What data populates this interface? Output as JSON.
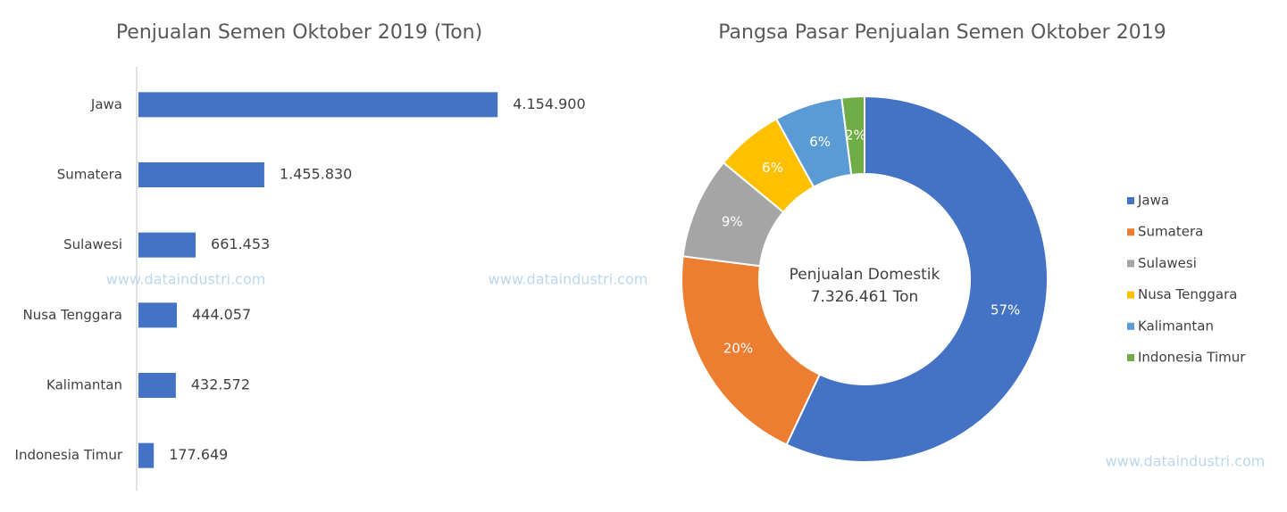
{
  "chart_data": [
    {
      "type": "hbar",
      "title": "Penjualan Semen Oktober 2019 (Ton)",
      "categories": [
        "Jawa",
        "Sumatera",
        "Sulawesi",
        "Nusa Tenggara",
        "Kalimantan",
        "Indonesia Timur"
      ],
      "values": [
        4154900,
        1455830,
        661453,
        444057,
        432572,
        177649
      ],
      "value_labels": [
        "4.154.900",
        "1.455.830",
        "661.453",
        "444.057",
        "432.572",
        "177.649"
      ],
      "color": "#4472c4",
      "xlim": [
        0,
        5000000
      ]
    },
    {
      "type": "donut",
      "title": "Pangsa Pasar Penjualan Semen Oktober 2019",
      "categories": [
        "Jawa",
        "Sumatera",
        "Sulawesi",
        "Nusa Tenggara",
        "Kalimantan",
        "Indonesia Timur"
      ],
      "values": [
        57,
        20,
        9,
        6,
        6,
        2
      ],
      "value_labels": [
        "57%",
        "20%",
        "9%",
        "6%",
        "6%",
        "2%"
      ],
      "colors": [
        "#4472c4",
        "#ed7d31",
        "#a5a5a5",
        "#ffc000",
        "#5b9bd5",
        "#70ad47"
      ],
      "annotations": [
        "Penjualan Domestik",
        "7.326.461 Ton"
      ],
      "legend": "right"
    }
  ],
  "watermarks": [
    "www.dataindustri.com",
    "www.dataindustri.com",
    "www.dataindustri.com"
  ]
}
